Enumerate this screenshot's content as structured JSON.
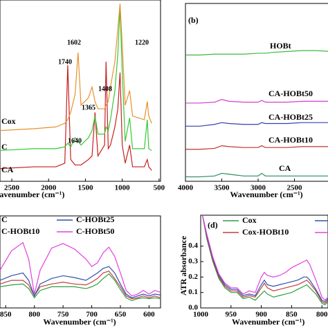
{
  "chart_data": [
    {
      "type": "line",
      "xlabel": "Wavenumber (cm⁻¹)",
      "xlim": [
        2660,
        480
      ],
      "ylim": [
        0,
        100
      ],
      "xticks": [
        2500,
        2000,
        1500,
        1000,
        500
      ],
      "x": [
        2660,
        2200,
        1900,
        1780,
        1740,
        1700,
        1640,
        1600,
        1560,
        1460,
        1410,
        1370,
        1330,
        1240,
        1220,
        1190,
        1160,
        1100,
        1060,
        1030,
        1000,
        960,
        900,
        860,
        700,
        660,
        640,
        600
      ],
      "series": [
        {
          "name": "CA",
          "color": "#c81e1e",
          "values": [
            7,
            8,
            8,
            10,
            64,
            12,
            9,
            9,
            9,
            12,
            14,
            38,
            14,
            20,
            66,
            18,
            20,
            30,
            40,
            60,
            20,
            10,
            20,
            8,
            8,
            12,
            8,
            6
          ]
        },
        {
          "name": "C",
          "color": "#34c834",
          "values": [
            17,
            18,
            18,
            19,
            21,
            19,
            24,
            22,
            20,
            24,
            28,
            36,
            26,
            26,
            30,
            28,
            34,
            50,
            70,
            96,
            60,
            22,
            35,
            18,
            18,
            34,
            18,
            17
          ]
        },
        {
          "name": "Cox",
          "color": "#e8902c",
          "values": [
            28,
            29,
            30,
            32,
            34,
            38,
            48,
            71,
            42,
            46,
            52,
            44,
            40,
            40,
            42,
            44,
            52,
            66,
            84,
            98,
            75,
            42,
            50,
            36,
            34,
            44,
            36,
            32
          ]
        }
      ],
      "annotations": [
        "1740",
        "1602",
        "1408",
        "1220",
        "1640",
        "1365"
      ]
    },
    {
      "type": "line",
      "panel_label": "(b)",
      "xlabel": "Wavenumber (cm⁻¹)",
      "xlim": [
        4000,
        1900
      ],
      "ylim": [
        0,
        100
      ],
      "xticks": [
        4000,
        3500,
        3000,
        2500
      ],
      "x": [
        4000,
        3800,
        3600,
        3500,
        3400,
        3200,
        3000,
        2950,
        2900,
        2800,
        2600,
        2400,
        2200,
        2000,
        1900
      ],
      "series": [
        {
          "name": "HOBt",
          "color": "#3cb83c",
          "values": [
            71,
            71,
            71.5,
            71.5,
            71.5,
            71.5,
            72,
            72,
            72,
            72.5,
            73,
            73.5,
            73.5,
            73,
            73
          ]
        },
        {
          "name": "CA-HOBt50",
          "color": "#d040d0",
          "values": [
            44,
            44,
            44.5,
            46,
            45,
            44.5,
            44.5,
            45.5,
            44.5,
            44.5,
            44.5,
            45,
            45,
            45,
            45
          ]
        },
        {
          "name": "CA-HOBt25",
          "color": "#3040b0",
          "values": [
            31,
            31,
            32,
            33,
            32.5,
            32,
            32,
            33,
            32.5,
            32.5,
            32.5,
            33,
            33,
            33,
            33
          ]
        },
        {
          "name": "CA-HOBt10",
          "color": "#c03030",
          "values": [
            18,
            18,
            18.5,
            20,
            19.5,
            19,
            19,
            20,
            19,
            19,
            19,
            19.5,
            19.5,
            19.5,
            19.5
          ]
        },
        {
          "name": "CA",
          "color": "#2a8a5a",
          "values": [
            2.5,
            2.5,
            3,
            4.5,
            4,
            3,
            3,
            4.5,
            3,
            3,
            3,
            3,
            3,
            3,
            3
          ]
        }
      ]
    },
    {
      "type": "line",
      "xlabel": "Wavenumber (cm⁻¹)",
      "xlim": [
        860,
        580
      ],
      "ylim": [
        0,
        100
      ],
      "xticks": [
        850,
        800,
        750,
        700,
        650,
        600
      ],
      "x": [
        860,
        840,
        820,
        810,
        800,
        790,
        770,
        750,
        730,
        710,
        700,
        690,
        680,
        670,
        660,
        650,
        640,
        630,
        620,
        610,
        600,
        590,
        580
      ],
      "series": [
        {
          "name": "C",
          "color": "#2e9e3e",
          "values": [
            23,
            25,
            26,
            21,
            11,
            19,
            23,
            23,
            23,
            21,
            23,
            26,
            32,
            37,
            30,
            20,
            11,
            8,
            10,
            11,
            10,
            11,
            10
          ]
        },
        {
          "name": "C-HOBt10",
          "color": "#c04040",
          "values": [
            26,
            30,
            30,
            25,
            13,
            23,
            26,
            28,
            26,
            25,
            28,
            32,
            38,
            40,
            32,
            23,
            13,
            10,
            11,
            13,
            11,
            13,
            11
          ]
        },
        {
          "name": "C-HOBt25",
          "color": "#3050b0",
          "values": [
            30,
            35,
            38,
            30,
            13,
            26,
            32,
            35,
            33,
            30,
            34,
            38,
            43,
            45,
            38,
            26,
            15,
            11,
            13,
            15,
            13,
            15,
            14
          ]
        },
        {
          "name": "C-HOBt50",
          "color": "#e040e0",
          "values": [
            41,
            62,
            71,
            53,
            15,
            41,
            65,
            70,
            64,
            53,
            45,
            49,
            60,
            66,
            56,
            38,
            19,
            13,
            15,
            19,
            15,
            19,
            17
          ]
        }
      ]
    },
    {
      "type": "line",
      "panel_label": "(d)",
      "xlabel": "Wavenumber (cm⁻¹)",
      "ylabel": "ATR absorbance",
      "xlim": [
        1000,
        790
      ],
      "ylim": [
        0,
        0.6
      ],
      "xticks": [
        1000,
        950,
        900,
        850,
        800
      ],
      "yticks": [
        {
          "value": 0,
          "label": "0.0"
        },
        0.1,
        0.2,
        0.3,
        0.4
      ],
      "x": [
        997,
        990,
        980,
        970,
        960,
        950,
        940,
        930,
        920,
        910,
        900,
        895,
        890,
        880,
        870,
        860,
        850,
        840,
        830,
        825,
        820,
        810,
        800,
        795,
        790
      ],
      "series": [
        {
          "name": "Cox",
          "color": "#2e9e3e",
          "values": [
            0.6,
            0.45,
            0.3,
            0.19,
            0.13,
            0.1,
            0.1,
            0.06,
            0.07,
            0.05,
            0.09,
            0.11,
            0.09,
            0.07,
            0.08,
            0.09,
            0.1,
            0.12,
            0.14,
            0.15,
            0.13,
            0.09,
            0.03,
            0.02,
            0.04
          ]
        },
        {
          "name": "Cox-HOBt10",
          "color": "#c04040",
          "values": [
            0.6,
            0.46,
            0.31,
            0.2,
            0.14,
            0.11,
            0.11,
            0.07,
            0.08,
            0.07,
            0.13,
            0.16,
            0.13,
            0.11,
            0.12,
            0.13,
            0.14,
            0.15,
            0.17,
            0.18,
            0.16,
            0.11,
            0.04,
            0.03,
            0.05
          ]
        },
        {
          "color": "#3050b0",
          "values": [
            0.6,
            0.47,
            0.32,
            0.21,
            0.15,
            0.12,
            0.12,
            0.08,
            0.09,
            0.08,
            0.15,
            0.18,
            0.15,
            0.14,
            0.15,
            0.16,
            0.17,
            0.18,
            0.2,
            0.2,
            0.18,
            0.12,
            0.05,
            0.04,
            0.06
          ]
        },
        {
          "color": "#e040e0",
          "values": [
            0.6,
            0.48,
            0.33,
            0.22,
            0.16,
            0.13,
            0.13,
            0.09,
            0.11,
            0.1,
            0.2,
            0.23,
            0.21,
            0.2,
            0.21,
            0.23,
            0.26,
            0.28,
            0.3,
            0.31,
            0.28,
            0.18,
            0.07,
            0.05,
            0.07
          ]
        }
      ]
    }
  ]
}
